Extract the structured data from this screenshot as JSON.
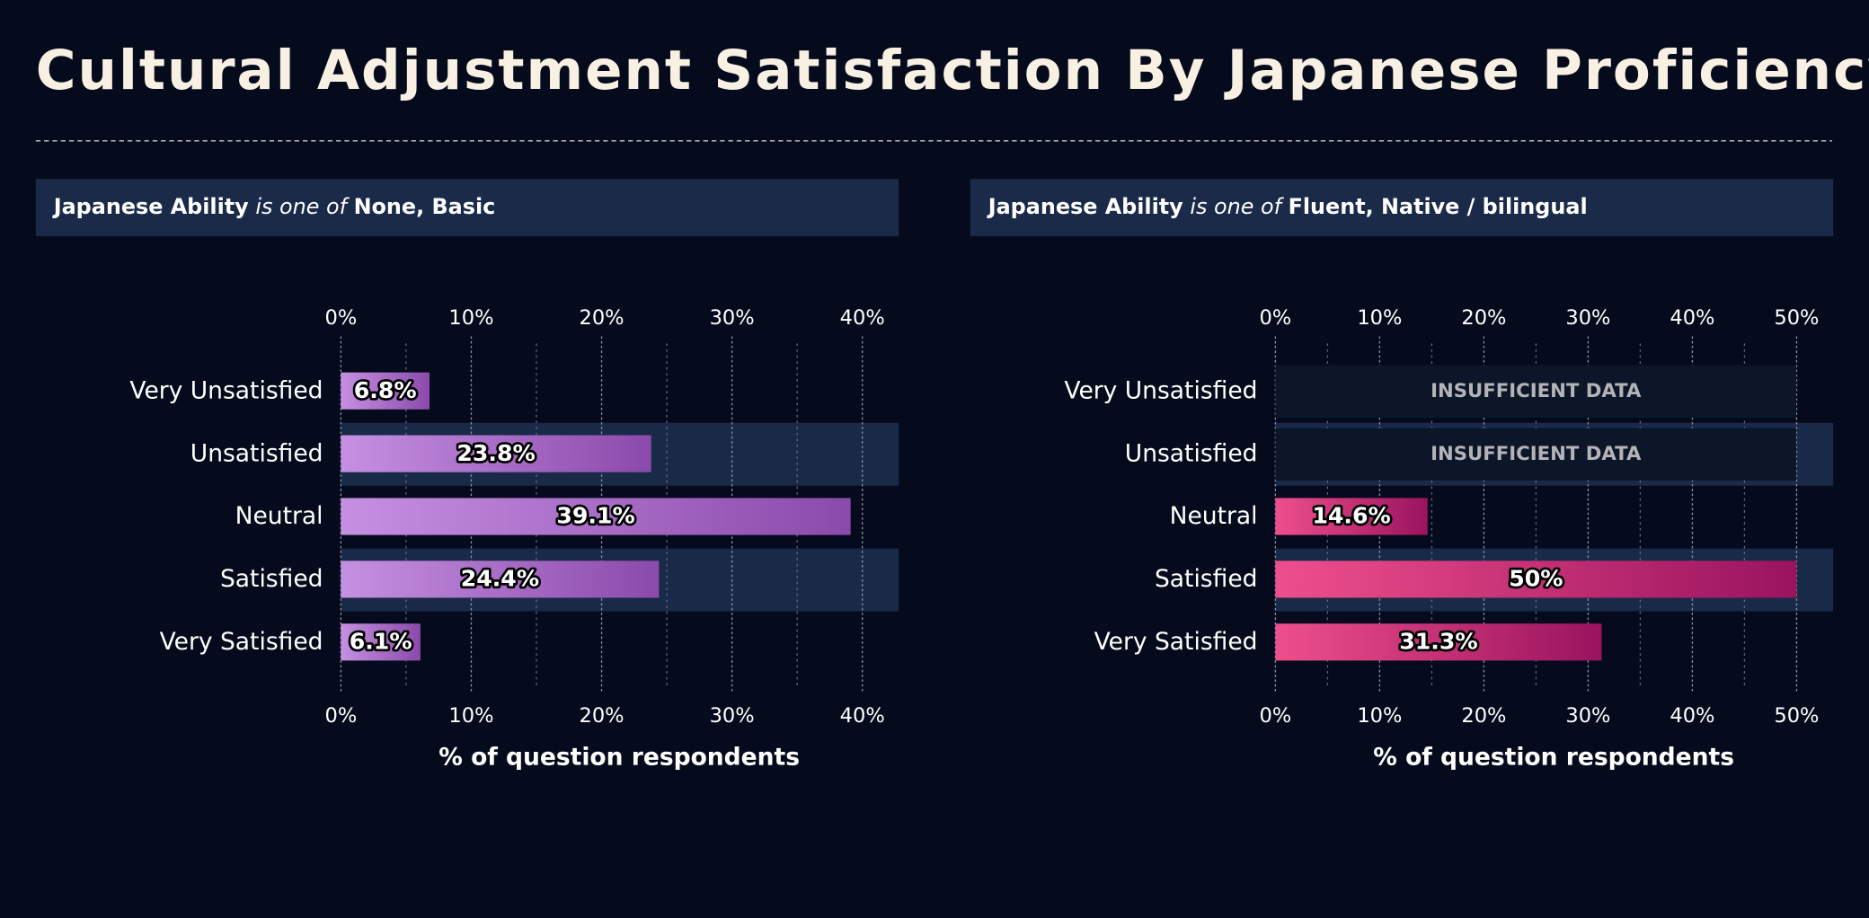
{
  "title": "Cultural Adjustment Satisfaction By Japanese Proficiency",
  "chart_data": [
    {
      "type": "bar",
      "orientation": "horizontal",
      "filter": {
        "field": "Japanese Ability",
        "operator": "is one of",
        "values": "None, Basic"
      },
      "categories": [
        "Very Unsatisfied",
        "Unsatisfied",
        "Neutral",
        "Satisfied",
        "Very Satisfied"
      ],
      "values": [
        6.8,
        23.8,
        39.1,
        24.4,
        6.1
      ],
      "value_labels": [
        "6.8%",
        "23.8%",
        "39.1%",
        "24.4%",
        "6.1%"
      ],
      "colors": [
        "#c690e2",
        "#8b4aab"
      ],
      "xlim": [
        0,
        42.7
      ],
      "xticks": [
        {
          "value": 0,
          "label": "0%"
        },
        {
          "value": 10,
          "label": "10%"
        },
        {
          "value": 20,
          "label": "20%"
        },
        {
          "value": 30,
          "label": "30%"
        },
        {
          "value": 40,
          "label": "40%"
        }
      ],
      "minor_xticks": [
        5,
        15,
        25,
        35
      ],
      "xlabel": "% of question respondents",
      "grid": true
    },
    {
      "type": "bar",
      "orientation": "horizontal",
      "filter": {
        "field": "Japanese Ability",
        "operator": "is one of",
        "values": "Fluent, Native / bilingual"
      },
      "categories": [
        "Very Unsatisfied",
        "Unsatisfied",
        "Neutral",
        "Satisfied",
        "Very Satisfied"
      ],
      "values": [
        null,
        null,
        14.6,
        50,
        31.3
      ],
      "value_labels": [
        "INSUFFICIENT DATA",
        "INSUFFICIENT DATA",
        "14.6%",
        "50%",
        "31.3%"
      ],
      "colors": [
        "#ee4f8c",
        "#9a135f"
      ],
      "xlim": [
        0,
        53.4
      ],
      "xticks": [
        {
          "value": 0,
          "label": "0%"
        },
        {
          "value": 10,
          "label": "10%"
        },
        {
          "value": 20,
          "label": "20%"
        },
        {
          "value": 30,
          "label": "30%"
        },
        {
          "value": 40,
          "label": "40%"
        },
        {
          "value": 50,
          "label": "50%"
        }
      ],
      "minor_xticks": [
        5,
        15,
        25,
        35,
        45
      ],
      "xlabel": "% of question respondents",
      "grid": true
    }
  ]
}
